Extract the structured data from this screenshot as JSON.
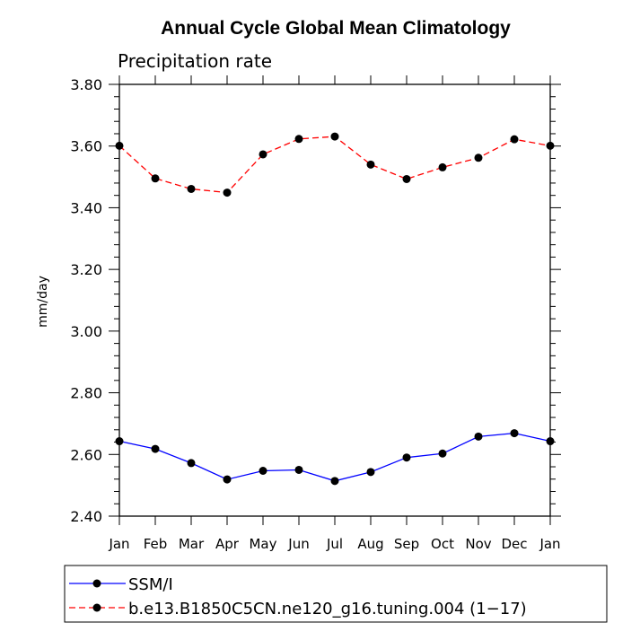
{
  "chart_data": {
    "type": "line",
    "title": "Annual Cycle Global Mean Climatology",
    "subtitle": "Precipitation rate",
    "xlabel": "",
    "ylabel": "mm/day",
    "categories": [
      "Jan",
      "Feb",
      "Mar",
      "Apr",
      "May",
      "Jun",
      "Jul",
      "Aug",
      "Sep",
      "Oct",
      "Nov",
      "Dec",
      "Jan"
    ],
    "ylim": [
      2.4,
      3.8
    ],
    "yticks": [
      "2.40",
      "2.60",
      "2.80",
      "3.00",
      "3.20",
      "3.40",
      "3.60",
      "3.80"
    ],
    "grid": false,
    "legend_position": "bottom",
    "series": [
      {
        "name": "SSM/I",
        "color": "#0000ff",
        "line_style": "solid",
        "marker": "filled-circle",
        "values": [
          2.643,
          2.618,
          2.572,
          2.519,
          2.547,
          2.55,
          2.514,
          2.543,
          2.59,
          2.603,
          2.658,
          2.669,
          2.643
        ]
      },
      {
        "name": "b.e13.B1850C5CN.ne120_g16.tuning.004 (1−17)",
        "color": "#ff0000",
        "line_style": "dashed",
        "marker": "filled-circle",
        "values": [
          3.601,
          3.495,
          3.461,
          3.449,
          3.573,
          3.623,
          3.631,
          3.54,
          3.493,
          3.531,
          3.562,
          3.622,
          3.601
        ]
      }
    ]
  }
}
